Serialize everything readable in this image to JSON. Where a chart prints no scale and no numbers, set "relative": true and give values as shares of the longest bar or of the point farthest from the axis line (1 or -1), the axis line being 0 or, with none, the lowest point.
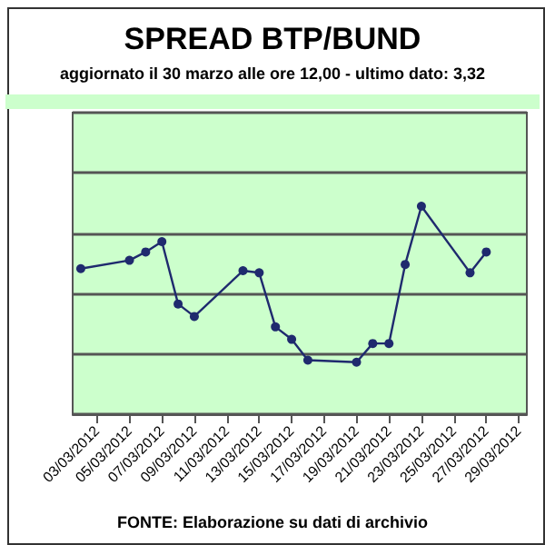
{
  "chart_data": {
    "type": "line",
    "title": "SPREAD BTP/BUND",
    "subtitle": "aggiornato il 30 marzo alle ore 12,00 - ultimo dato: 3,32",
    "annotations": [
      "FONTE: Elaborazione su dati di archivio"
    ],
    "relative": true,
    "x": [
      "2012-03-02",
      "2012-03-05",
      "2012-03-06",
      "2012-03-07",
      "2012-03-08",
      "2012-03-09",
      "2012-03-12",
      "2012-03-13",
      "2012-03-14",
      "2012-03-15",
      "2012-03-16",
      "2012-03-19",
      "2012-03-20",
      "2012-03-21",
      "2012-03-22",
      "2012-03-23",
      "2012-03-26",
      "2012-03-27"
    ],
    "series": [
      {
        "color": "#1f2a6e",
        "values": [
          0.7,
          0.74,
          0.78,
          0.83,
          0.53,
          0.47,
          0.69,
          0.68,
          0.42,
          0.36,
          0.26,
          0.25,
          0.34,
          0.34,
          0.72,
          1,
          0.68,
          0.78
        ]
      }
    ],
    "xlim": [
      "2012-03-01T12:00",
      "2012-03-29T12:00"
    ],
    "xticks": [
      {
        "value": "2012-03-03",
        "label": "03/03/2012"
      },
      {
        "value": "2012-03-05",
        "label": "05/03/2012"
      },
      {
        "value": "2012-03-07",
        "label": "07/03/2012"
      },
      {
        "value": "2012-03-09",
        "label": "09/03/2012"
      },
      {
        "value": "2012-03-11",
        "label": "11/03/2012"
      },
      {
        "value": "2012-03-13",
        "label": "13/03/2012"
      },
      {
        "value": "2012-03-15",
        "label": "15/03/2012"
      },
      {
        "value": "2012-03-17",
        "label": "17/03/2012"
      },
      {
        "value": "2012-03-19",
        "label": "19/03/2012"
      },
      {
        "value": "2012-03-21",
        "label": "21/03/2012"
      },
      {
        "value": "2012-03-23",
        "label": "23/03/2012"
      },
      {
        "value": "2012-03-25",
        "label": "25/03/2012"
      },
      {
        "value": "2012-03-27",
        "label": "27/03/2012"
      },
      {
        "value": "2012-03-29",
        "label": "29/03/2012"
      }
    ],
    "grid": "y",
    "marker": "circle",
    "line_style": "solid"
  }
}
